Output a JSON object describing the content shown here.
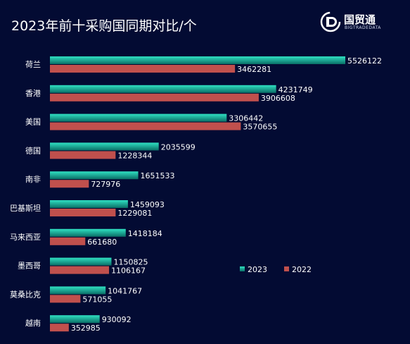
{
  "title": "2023年前十采购国同期对比/个",
  "brand": {
    "name": "国贸通",
    "subtitle": "BIGTRADEDATA",
    "logo_icon": "gmt-logo-icon"
  },
  "colors": {
    "background": "#030b33",
    "series_2023_top": "#2fe0c2",
    "series_2023_bottom": "#0a6e66",
    "series_2022": "#c0504d"
  },
  "chart_data": {
    "type": "bar",
    "orientation": "horizontal",
    "title": "2023年前十采购国同期对比/个",
    "categories": [
      "荷兰",
      "香港",
      "美国",
      "德国",
      "南非",
      "巴基斯坦",
      "马来西亚",
      "墨西哥",
      "莫桑比克",
      "越南"
    ],
    "series": [
      {
        "name": "2023",
        "values": [
          5526122,
          4231749,
          3306442,
          2035599,
          1651533,
          1459093,
          1418184,
          1150825,
          1041767,
          930092
        ]
      },
      {
        "name": "2022",
        "values": [
          3462281,
          3906608,
          3570655,
          1228344,
          727976,
          1229081,
          661680,
          1106167,
          571055,
          352985
        ]
      }
    ],
    "xlim": [
      0,
      5526122
    ],
    "legend_position": "right-middle",
    "grid": false,
    "data_labels": true
  }
}
